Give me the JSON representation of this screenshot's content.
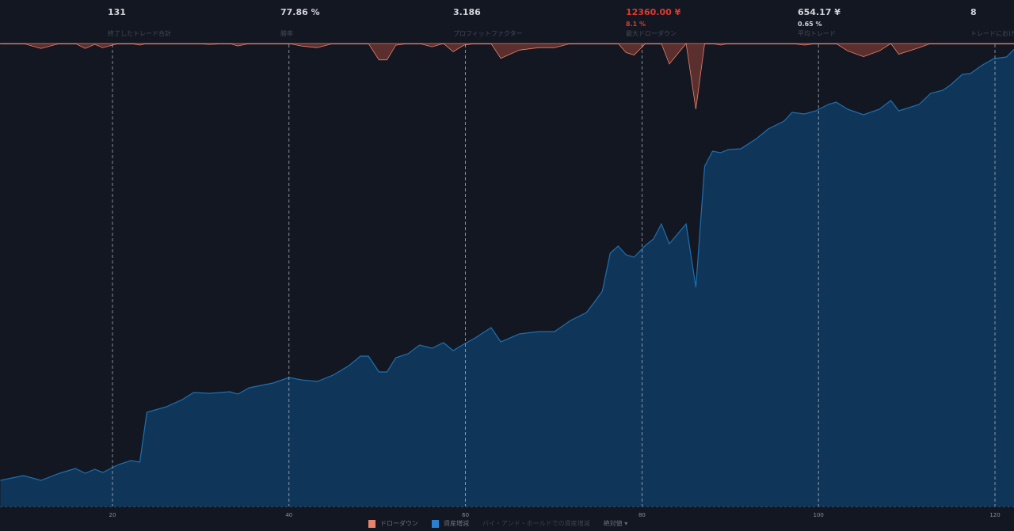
{
  "stats": [
    {
      "value": "131",
      "label": "終了したトレード合計"
    },
    {
      "value": "77.86 %",
      "label": "勝率"
    },
    {
      "value": "3.186",
      "label": "プロフィットファクター"
    },
    {
      "value": "12360.00 ¥",
      "sub": "8.1 %",
      "label": "最大ドローダウン",
      "negative": true
    },
    {
      "value": "654.17 ¥",
      "sub": "0.65 %",
      "label": "平均トレード"
    },
    {
      "value": "8",
      "label": "トレードにおける平均バー数"
    }
  ],
  "legend": {
    "drawdown": "ドローダウン",
    "equity": "資産増減",
    "buy_hold": "バイ・アンド・ホールドでの資産増減",
    "mode": "絶対値 ▾"
  },
  "colors": {
    "background": "#131722",
    "equity": "#1e6fb0",
    "equity_fill": "#0f3659",
    "drawdown": "#e8826c",
    "drawdown_fill": "#5a2f2e",
    "negative": "#e0392e"
  },
  "chart_data": {
    "type": "area",
    "xlabel": "",
    "ylabel": "",
    "x_ticks": [
      20,
      40,
      60,
      80,
      100,
      120
    ],
    "xlim": [
      7.3,
      122.2
    ],
    "grid": "vertical dashed at x ticks",
    "legend_placement": "bottom-center",
    "max_drawdown": 12360,
    "equity": {
      "name": "資産増減",
      "x": [
        7.3,
        9.9,
        11.9,
        14.0,
        15.8,
        16.9,
        18.0,
        18.9,
        20.7,
        22.1,
        23.1,
        23.9,
        26.1,
        27.9,
        29.2,
        31.0,
        33.3,
        34.2,
        35.5,
        38.2,
        40.0,
        41.4,
        43.2,
        45.0,
        46.8,
        48.1,
        49.0,
        50.2,
        51.1,
        52.1,
        53.5,
        54.8,
        56.2,
        57.5,
        58.6,
        59.8,
        61.1,
        62.9,
        64.0,
        66.1,
        68.3,
        70.1,
        71.9,
        73.7,
        74.6,
        75.5,
        76.4,
        77.3,
        78.2,
        79.1,
        80.4,
        81.3,
        82.2,
        83.1,
        84.0,
        85.0,
        86.1,
        87.1,
        88.0,
        88.9,
        89.8,
        91.2,
        93.0,
        94.3,
        96.1,
        97.0,
        98.4,
        99.7,
        101.1,
        102.0,
        103.3,
        105.1,
        106.9,
        108.2,
        109.1,
        111.4,
        112.7,
        114.1,
        115.0,
        116.3,
        117.2,
        118.6,
        119.9,
        121.3,
        122.2
      ],
      "y": [
        4880,
        5770,
        4880,
        6220,
        7100,
        6220,
        6960,
        6360,
        7840,
        8580,
        8290,
        17610,
        18650,
        19980,
        21310,
        21160,
        21460,
        21020,
        22200,
        23090,
        24120,
        23680,
        23380,
        24570,
        26340,
        28120,
        28120,
        25160,
        25160,
        27820,
        28560,
        30190,
        29600,
        30640,
        29160,
        30340,
        31520,
        33450,
        30780,
        32260,
        32710,
        32710,
        34780,
        36260,
        38180,
        40260,
        47360,
        48690,
        47060,
        46620,
        48840,
        50020,
        52840,
        49140,
        50910,
        52840,
        41000,
        63640,
        66450,
        66160,
        66750,
        66900,
        68820,
        70600,
        72080,
        73700,
        73410,
        74000,
        75180,
        75630,
        74300,
        73260,
        74300,
        75920,
        74000,
        75180,
        77260,
        77850,
        78880,
        80810,
        80960,
        82580,
        83770,
        84060,
        85540
      ]
    }
  }
}
